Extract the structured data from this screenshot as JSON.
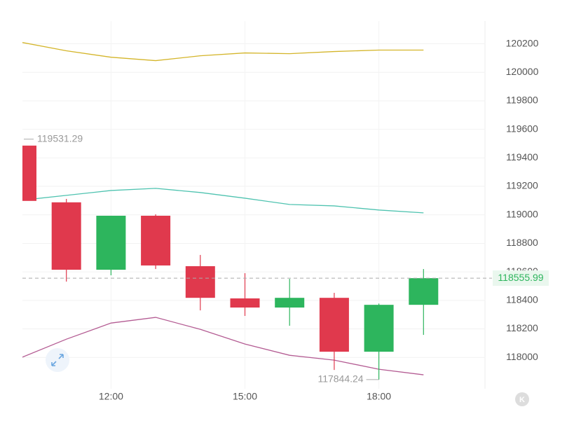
{
  "chart_data": {
    "type": "candlestick",
    "categories": [
      null,
      null,
      "12:00",
      null,
      null,
      "15:00",
      null,
      null,
      "18:00",
      null
    ],
    "open": [
      119486,
      119088,
      118615,
      118994,
      118640,
      118414,
      118350,
      118418,
      118040,
      118369
    ],
    "high": [
      119531.29,
      119112,
      118994,
      119004,
      118719,
      118591,
      118551,
      118453,
      118378,
      118620
    ],
    "low": [
      119098,
      118532,
      118576,
      118620,
      118330,
      118291,
      118222,
      117912,
      117844.24,
      118158
    ],
    "close": [
      119098,
      118615,
      118994,
      118645,
      118418,
      118350,
      118418,
      118040,
      118369,
      118555.99
    ],
    "up_color": "#2db55d",
    "down_color": "#e0394d",
    "overlays": [
      {
        "color": "#d4b52a",
        "values": [
          120210,
          120151,
          120106,
          120082,
          120116,
          120136,
          120131,
          120146,
          120156,
          120156
        ]
      },
      {
        "color": "#4fc3b0",
        "values": [
          119103,
          119137,
          119171,
          119186,
          119157,
          119117,
          119073,
          119063,
          119034,
          119014
        ]
      },
      {
        "color": "#b45c93",
        "values": [
          118000,
          118128,
          118241,
          118281,
          118197,
          118094,
          118015,
          117981,
          117917,
          117878
        ]
      }
    ],
    "ylim": [
      117780,
      120360
    ],
    "yticks": [
      118000,
      118200,
      118400,
      118600,
      118800,
      119000,
      119200,
      119400,
      119600,
      119800,
      120000,
      120200
    ],
    "grid": true,
    "watermark": "K"
  }
}
